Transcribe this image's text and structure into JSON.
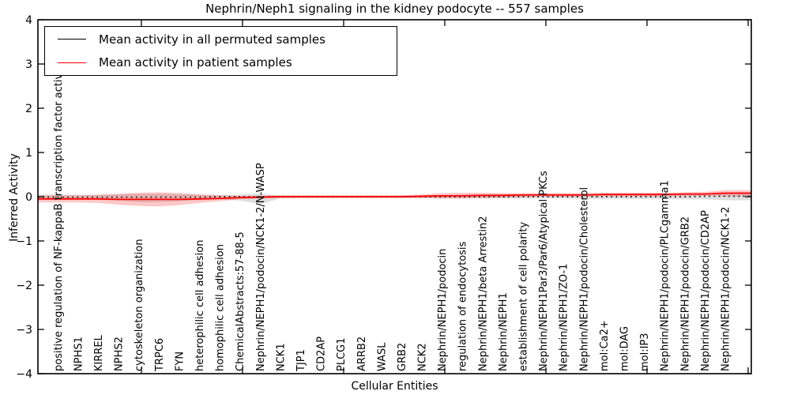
{
  "figure": {
    "title": "Nephrin/Neph1 signaling in the kidney podocyte -- 557 samples",
    "xlabel": "Cellular Entities",
    "ylabel": "Inferred Activity"
  },
  "legend": {
    "items": [
      {
        "label": "Mean activity in all permuted samples",
        "color": "#000000"
      },
      {
        "label": "Mean activity in patient samples",
        "color": "#ff0000"
      }
    ]
  },
  "chart_data": {
    "type": "line",
    "title": "Nephrin/Neph1 signaling in the kidney podocyte -- 557 samples",
    "xlabel": "Cellular Entities",
    "ylabel": "Inferred Activity",
    "ylim": [
      -4,
      4
    ],
    "yticks": [
      -4,
      -3,
      -2,
      -1,
      0,
      1,
      2,
      3,
      4
    ],
    "grid": false,
    "legend_position": "upper left",
    "categories": [
      "positive regulation of NF-kappaB transcription factor activity",
      "NPHS1",
      "KIRREL",
      "NPHS2",
      "cytoskeleton organization",
      "TRPC6",
      "FYN",
      "heterophilic cell adhesion",
      "homophilic cell adhesion",
      "ChemicalAbstracts:57-88-5",
      "Nephrin/NEPH1/podocin/NCK1-2/N-WASP",
      "NCK1",
      "TJP1",
      "CD2AP",
      "PLCG1",
      "ARRB2",
      "WASL",
      "GRB2",
      "NCK2",
      "Nephrin/NEPH1/podocin",
      "regulation of endocytosis",
      "Nephrin/NEPH1/beta Arrestin2",
      "Nephrin/NEPH1",
      "establishment of cell polarity",
      "Nephrin/NEPH1Par3/Par6/Atypical PKCs",
      "Nephrin/NEPH1/ZO-1",
      "Nephrin/NEPH1/podocin/Cholesterol",
      "mol:Ca2+",
      "mol:DAG",
      "mol:IP3",
      "Nephrin/NEPH1/podocin/PLCgamma1",
      "Nephrin/NEPH1/podocin/GRB2",
      "Nephrin/NEPH1/podocin/CD2AP",
      "Nephrin/NEPH1/podocin/NCK1-2"
    ],
    "series": [
      {
        "name": "Mean activity in all permuted samples",
        "color": "#000000",
        "style": "dotted",
        "band_color": "#000000",
        "band_opacity": 0.13,
        "values": [
          -0.01,
          -0.01,
          -0.01,
          -0.01,
          -0.01,
          -0.01,
          -0.01,
          -0.01,
          0.0,
          0.0,
          0.0,
          0.0,
          0.0,
          0.0,
          0.0,
          0.0,
          0.0,
          0.0,
          0.0,
          0.0,
          0.0,
          0.0,
          0.0,
          0.0,
          0.0,
          0.0,
          0.0,
          0.0,
          0.0,
          0.0,
          0.0,
          0.0,
          0.01,
          0.01
        ],
        "band_upper": [
          0.05,
          0.05,
          0.05,
          0.06,
          0.07,
          0.07,
          0.06,
          0.05,
          0.04,
          0.05,
          0.07,
          0.03,
          0.03,
          0.03,
          0.03,
          0.03,
          0.03,
          0.03,
          0.03,
          0.04,
          0.04,
          0.04,
          0.04,
          0.04,
          0.04,
          0.04,
          0.04,
          0.05,
          0.05,
          0.05,
          0.05,
          0.06,
          0.06,
          0.08
        ],
        "band_lower": [
          -0.06,
          -0.06,
          -0.07,
          -0.09,
          -0.12,
          -0.12,
          -0.1,
          -0.08,
          -0.06,
          -0.09,
          -0.17,
          -0.04,
          -0.03,
          -0.03,
          -0.03,
          -0.03,
          -0.03,
          -0.03,
          -0.03,
          -0.04,
          -0.04,
          -0.04,
          -0.04,
          -0.04,
          -0.04,
          -0.04,
          -0.05,
          -0.05,
          -0.05,
          -0.05,
          -0.05,
          -0.06,
          -0.06,
          -0.08
        ]
      },
      {
        "name": "Mean activity in patient samples",
        "color": "#ff0000",
        "style": "solid",
        "band_color": "#ff0000",
        "band_opacity": 0.22,
        "values": [
          -0.05,
          -0.05,
          -0.05,
          -0.06,
          -0.06,
          -0.06,
          -0.06,
          -0.05,
          -0.04,
          -0.02,
          -0.01,
          0.0,
          0.0,
          0.0,
          0.0,
          0.0,
          0.0,
          0.0,
          0.01,
          0.02,
          0.02,
          0.03,
          0.03,
          0.04,
          0.04,
          0.04,
          0.04,
          0.05,
          0.05,
          0.05,
          0.05,
          0.06,
          0.06,
          0.08
        ],
        "band_upper": [
          0.03,
          0.03,
          0.04,
          0.06,
          0.09,
          0.1,
          0.08,
          0.05,
          0.03,
          0.02,
          0.02,
          0.03,
          0.03,
          0.03,
          0.03,
          0.03,
          0.03,
          0.03,
          0.05,
          0.08,
          0.09,
          0.09,
          0.08,
          0.08,
          0.08,
          0.08,
          0.08,
          0.09,
          0.09,
          0.09,
          0.09,
          0.1,
          0.11,
          0.15
        ],
        "band_lower": [
          -0.13,
          -0.13,
          -0.14,
          -0.18,
          -0.21,
          -0.22,
          -0.19,
          -0.14,
          -0.1,
          -0.06,
          -0.04,
          -0.03,
          -0.03,
          -0.03,
          -0.03,
          -0.03,
          -0.03,
          -0.03,
          -0.03,
          -0.04,
          -0.04,
          -0.03,
          -0.02,
          -0.01,
          0.0,
          0.0,
          0.0,
          0.01,
          0.01,
          0.01,
          0.01,
          0.02,
          0.02,
          0.01
        ]
      }
    ]
  }
}
